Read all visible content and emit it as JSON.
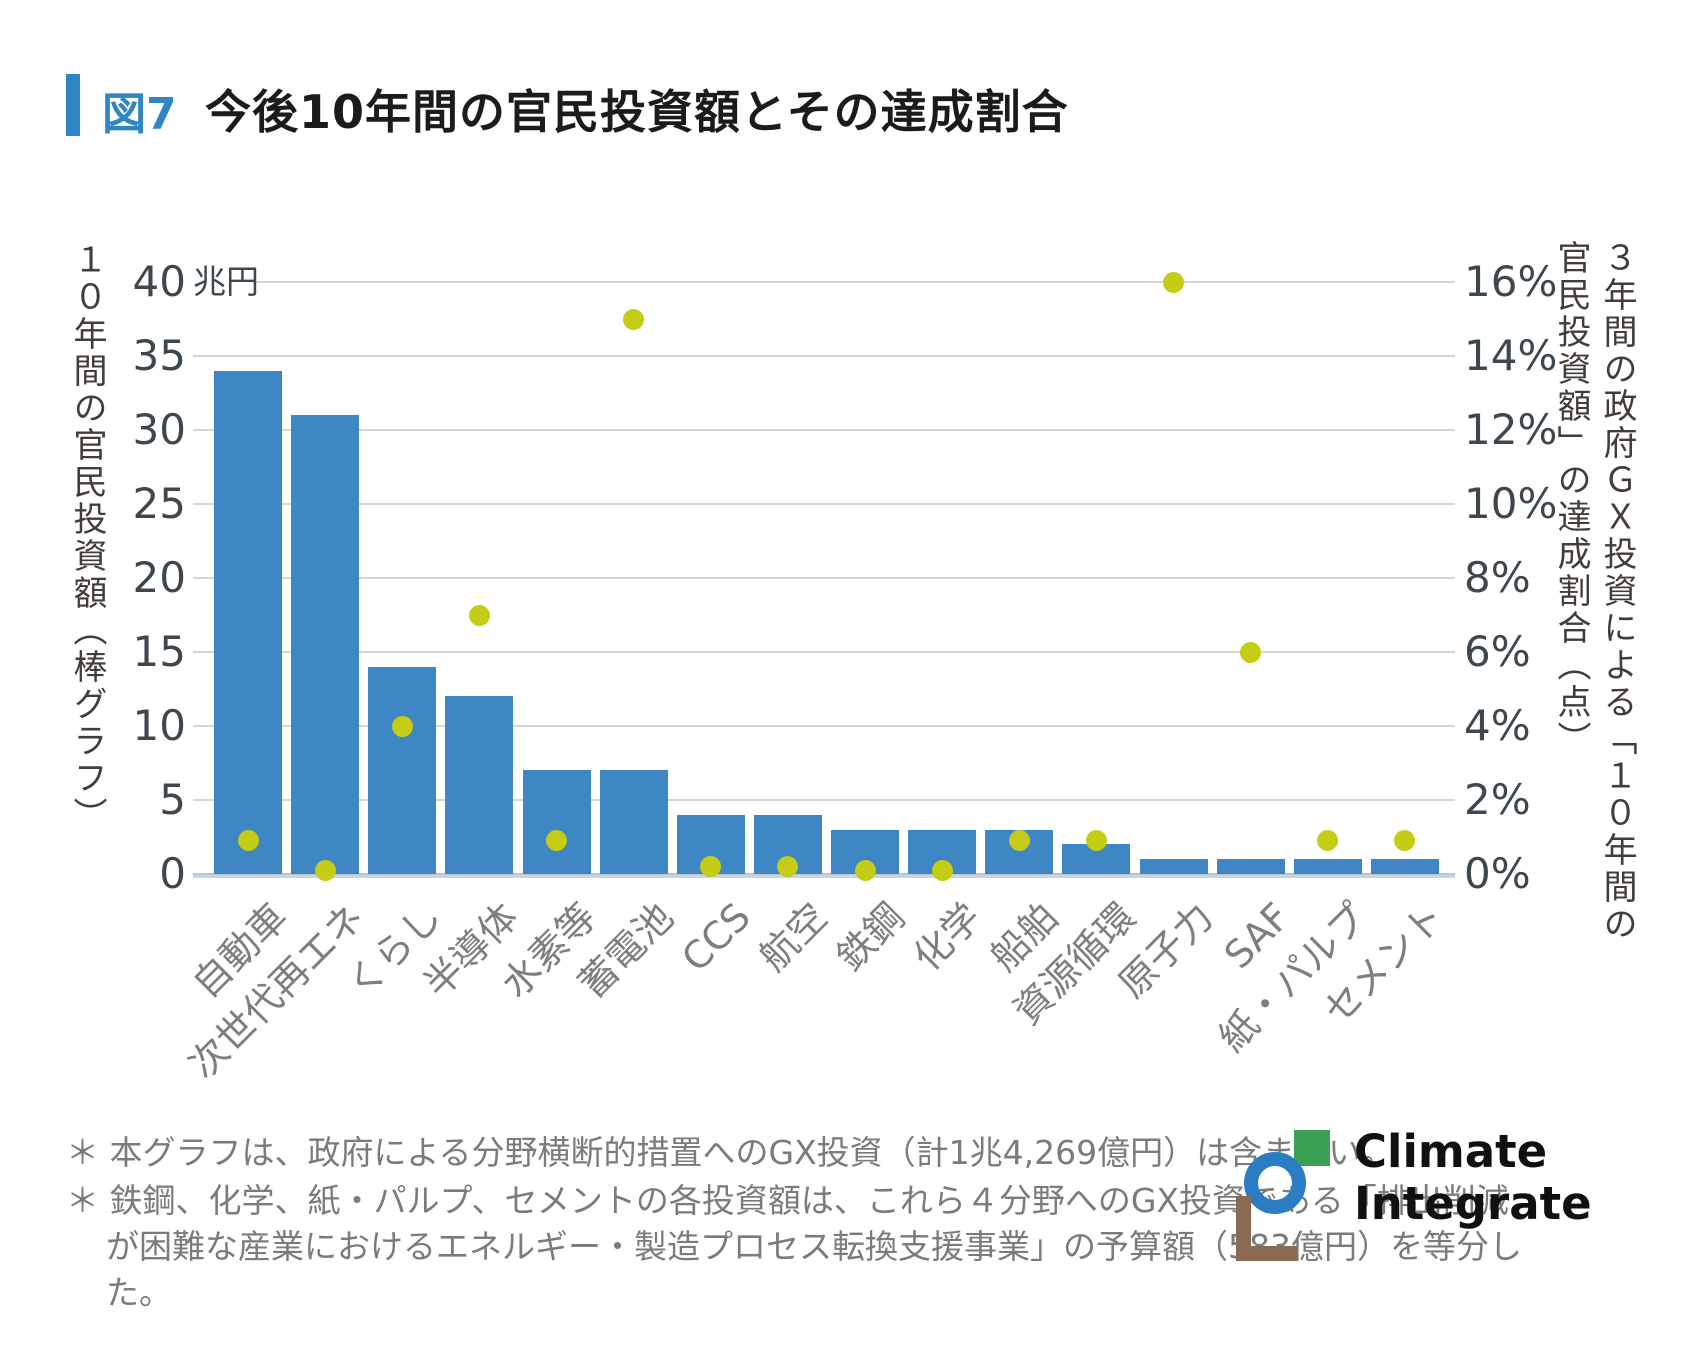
{
  "header": {
    "tag": "図7",
    "title": "今後10年間の官民投資額とその達成割合",
    "accent_color": "#2e86c4"
  },
  "chart_data": {
    "type": "bar",
    "title": "今後10年間の官民投資額とその達成割合",
    "categories": [
      "自動車",
      "次世代再エネ",
      "くらし",
      "半導体",
      "水素等",
      "蓄電池",
      "CCS",
      "航空",
      "鉄鋼",
      "化学",
      "船舶",
      "資源循環",
      "原子力",
      "SAF",
      "紙・パルプ",
      "セメント"
    ],
    "series": [
      {
        "name": "１０年間の官民投資額（棒グラフ）",
        "type": "bar",
        "axis": "left",
        "unit": "兆円",
        "color": "#3e86c4",
        "values": [
          34,
          31,
          14,
          12,
          7,
          7,
          4,
          4,
          3,
          3,
          3,
          2,
          1,
          1,
          1,
          1
        ]
      },
      {
        "name": "３年間の政府ＧＸ投資による「１０年間の官民投資額」の達成割合（点）",
        "type": "scatter",
        "axis": "right",
        "unit": "%",
        "color": "#c4cc15",
        "values": [
          0.9,
          0.1,
          4,
          7,
          0.9,
          15,
          0.2,
          0.2,
          0.1,
          0.1,
          0.9,
          0.9,
          16,
          6,
          0.9,
          0.9
        ]
      }
    ],
    "left_axis": {
      "title": "１０年間の官民投資額（棒グラフ）",
      "unit": "兆円",
      "min": 0,
      "max": 40,
      "step": 5,
      "ticks": [
        "0",
        "5",
        "10",
        "15",
        "20",
        "25",
        "30",
        "35",
        "40"
      ]
    },
    "right_axis": {
      "title": "３年間の政府ＧＸ投資による「１０年間の官民投資額」の達成割合（点）",
      "title_line1": "３年間の政府ＧＸ投資による「１０年間の",
      "title_line2": "官民投資額」の達成割合（点）",
      "unit": "%",
      "min": 0,
      "max": 16,
      "step": 2,
      "ticks": [
        "0%",
        "2%",
        "4%",
        "6%",
        "8%",
        "10%",
        "12%",
        "14%",
        "16%"
      ]
    },
    "grid": true,
    "legend_position": "none"
  },
  "footnotes": [
    "＊ 本グラフは、政府による分野横断的措置へのGX投資（計1兆4,269億円）は含まない。",
    "＊ 鉄鋼、化学、紙・パルプ、セメントの各投資額は、これら４分野へのGX投資である「排出削減が困難な産業におけるエネルギー・製造プロセス転換支援事業」の予算額（583億円）を等分した。"
  ],
  "logo": {
    "line1": "Climate",
    "line2": "Integrate"
  }
}
